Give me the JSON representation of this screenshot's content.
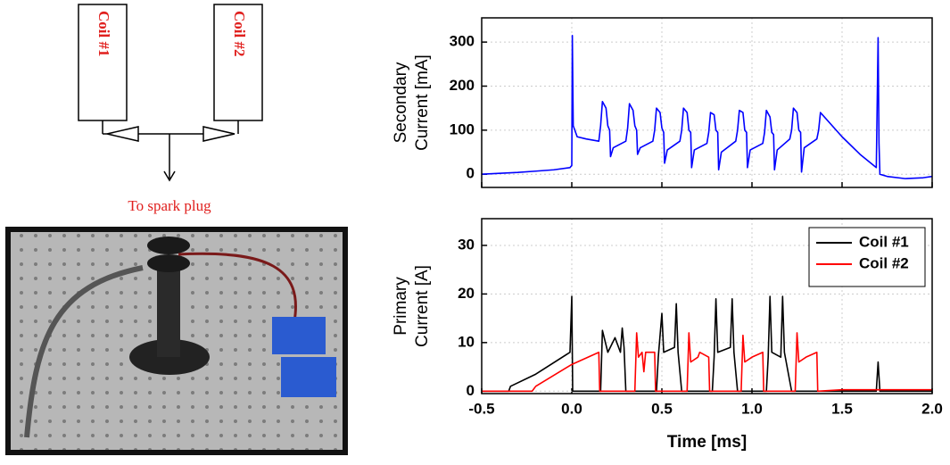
{
  "diagram": {
    "coils": [
      "Coil #1",
      "Coil #2"
    ],
    "output_label": "To spark plug"
  },
  "chart_data": [
    {
      "type": "line",
      "ylabel": [
        "Secondary",
        "Current [mA]"
      ],
      "xlim": [
        -0.5,
        2.0
      ],
      "xticks": [
        -0.5,
        0,
        0.5,
        1,
        1.5,
        2
      ],
      "ylim": [
        -30,
        355
      ],
      "yticks": [
        0,
        100,
        200,
        300
      ],
      "grid": true,
      "series": [
        {
          "color": "#0000ff",
          "x": [
            -0.5,
            -0.4,
            -0.3,
            -0.2,
            -0.1,
            -0.01,
            0,
            0.003,
            0.008,
            0.03,
            0.08,
            0.15,
            0.16,
            0.17,
            0.19,
            0.2,
            0.21,
            0.215,
            0.23,
            0.3,
            0.31,
            0.32,
            0.34,
            0.35,
            0.36,
            0.365,
            0.38,
            0.45,
            0.46,
            0.47,
            0.49,
            0.5,
            0.51,
            0.515,
            0.53,
            0.6,
            0.61,
            0.62,
            0.64,
            0.65,
            0.66,
            0.665,
            0.68,
            0.75,
            0.76,
            0.77,
            0.79,
            0.8,
            0.81,
            0.815,
            0.83,
            0.91,
            0.92,
            0.93,
            0.95,
            0.96,
            0.97,
            0.975,
            0.99,
            1.06,
            1.07,
            1.08,
            1.1,
            1.11,
            1.12,
            1.125,
            1.14,
            1.21,
            1.22,
            1.23,
            1.25,
            1.26,
            1.27,
            1.275,
            1.29,
            1.36,
            1.37,
            1.38,
            1.5,
            1.6,
            1.69,
            1.7,
            1.705,
            1.71,
            1.75,
            1.85,
            1.95,
            2.0
          ],
          "values": [
            0,
            2,
            4,
            7,
            10,
            15,
            20,
            315,
            110,
            85,
            80,
            75,
            110,
            165,
            150,
            110,
            100,
            40,
            60,
            75,
            105,
            160,
            145,
            110,
            100,
            45,
            60,
            75,
            100,
            150,
            140,
            105,
            95,
            25,
            55,
            75,
            100,
            150,
            140,
            100,
            95,
            15,
            55,
            70,
            95,
            140,
            135,
            100,
            95,
            10,
            50,
            75,
            100,
            145,
            140,
            100,
            95,
            15,
            55,
            70,
            95,
            145,
            130,
            95,
            90,
            10,
            55,
            80,
            100,
            150,
            140,
            100,
            95,
            5,
            60,
            80,
            100,
            140,
            85,
            45,
            15,
            310,
            70,
            0,
            -5,
            -10,
            -8,
            -5
          ]
        }
      ]
    },
    {
      "type": "line",
      "ylabel": [
        "Primary",
        "Current [A]"
      ],
      "xlabel": "Time [ms]",
      "xlim": [
        -0.5,
        2.0
      ],
      "xticks": [
        -0.5,
        {
          "value": 0,
          "label": "0.0"
        },
        0.5,
        {
          "value": 1,
          "label": "1.0"
        },
        1.5,
        {
          "value": 2,
          "label": "2.0"
        }
      ],
      "ylim": [
        -0.5,
        35.5
      ],
      "yticks": [
        0,
        10,
        20,
        30
      ],
      "grid": true,
      "legend": "upper right",
      "series": [
        {
          "name": "Coil #1",
          "color": "#000000",
          "x": [
            -0.5,
            -0.35,
            -0.34,
            -0.2,
            -0.01,
            0,
            0.005,
            0.16,
            0.17,
            0.2,
            0.24,
            0.27,
            0.28,
            0.29,
            0.3,
            0.47,
            0.48,
            0.5,
            0.51,
            0.57,
            0.58,
            0.59,
            0.61,
            0.78,
            0.79,
            0.8,
            0.81,
            0.88,
            0.89,
            0.9,
            0.92,
            1.08,
            1.09,
            1.1,
            1.11,
            1.16,
            1.17,
            1.18,
            1.22,
            1.69,
            1.7,
            1.71,
            2.0
          ],
          "values": [
            0,
            0,
            1,
            3.5,
            8,
            19.5,
            0,
            0,
            12.5,
            8,
            11,
            8,
            13,
            9,
            0,
            0,
            7,
            16,
            8,
            9,
            18,
            8,
            0,
            0,
            7,
            19,
            8,
            9,
            19,
            8,
            0,
            0,
            7,
            19.5,
            8,
            7,
            19.5,
            8,
            0,
            0,
            6,
            0,
            0
          ]
        },
        {
          "name": "Coil #2",
          "color": "#ff0000",
          "x": [
            -0.5,
            -0.22,
            -0.2,
            0,
            0.15,
            0.155,
            0.35,
            0.36,
            0.37,
            0.39,
            0.4,
            0.41,
            0.46,
            0.465,
            0.64,
            0.65,
            0.66,
            0.7,
            0.71,
            0.76,
            0.765,
            0.94,
            0.95,
            0.96,
            1.0,
            1.06,
            1.065,
            1.24,
            1.25,
            1.26,
            1.3,
            1.36,
            1.365,
            1.5,
            2.0
          ],
          "values": [
            0,
            0,
            1,
            5.5,
            8,
            0,
            0,
            12,
            7,
            8,
            4,
            8,
            8,
            0,
            0,
            12,
            6,
            7,
            8,
            7,
            0,
            0,
            11.5,
            6,
            7,
            8,
            0,
            0,
            12,
            6,
            7,
            8,
            0,
            0.3,
            0.3
          ]
        }
      ]
    }
  ]
}
